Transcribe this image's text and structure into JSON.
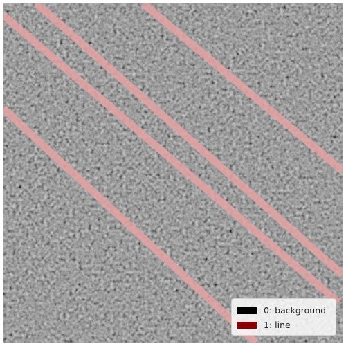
{
  "colors": {
    "background_class": "#000000",
    "line_class": "#8b0000",
    "line_overlay": "#e4a3a3"
  },
  "legend": {
    "items": [
      {
        "label": "0: background",
        "color": "#000000"
      },
      {
        "label": "1: line",
        "color": "#8b0000"
      }
    ]
  }
}
